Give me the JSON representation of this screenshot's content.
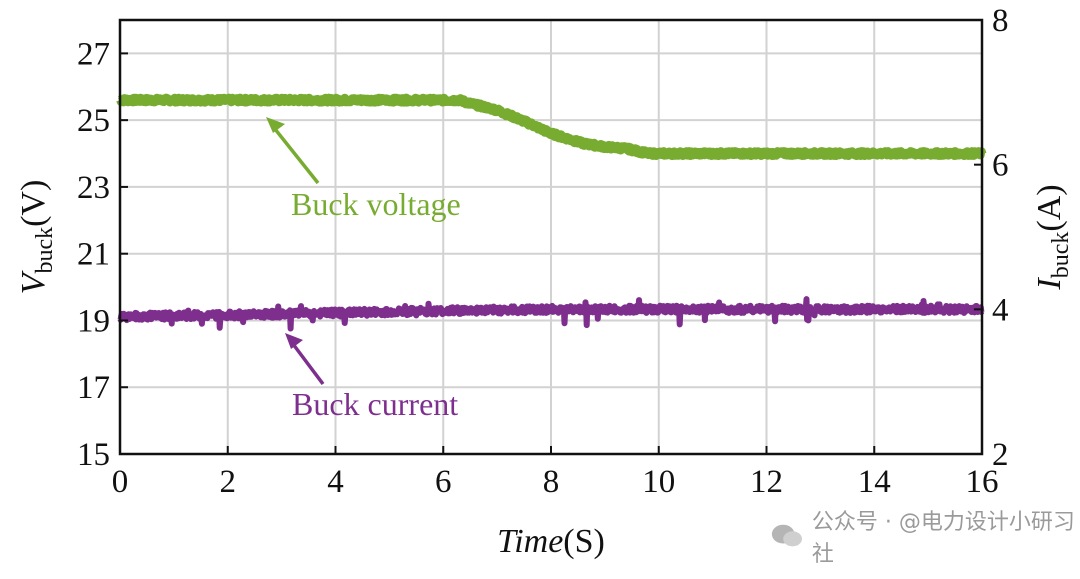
{
  "chart_data": {
    "type": "line",
    "xlabel": "Time",
    "xlabel_unit": "(S)",
    "ylabel_left": {
      "symbol": "V",
      "subscript": "buck",
      "unit": "(V)"
    },
    "ylabel_right": {
      "symbol": "I",
      "subscript": "buck",
      "unit": "(A)"
    },
    "xlim": [
      0,
      16
    ],
    "ylim_left": [
      15,
      28
    ],
    "ylim_right": [
      2,
      8
    ],
    "x_ticks": [
      "0",
      "2",
      "4",
      "6",
      "8",
      "10",
      "12",
      "14",
      "16"
    ],
    "y_left_ticks": [
      "15",
      "17",
      "19",
      "21",
      "23",
      "25",
      "27"
    ],
    "y_left_tick_values": [
      15,
      17,
      19,
      21,
      23,
      25,
      27
    ],
    "y_right_ticks": [
      "2",
      "4",
      "6",
      "8"
    ],
    "y_right_tick_values": [
      2,
      4,
      6,
      8
    ],
    "grid": true,
    "series": [
      {
        "name": "Buck voltage",
        "axis": "left",
        "color": "#77ac30",
        "x": [
          0,
          1,
          2,
          3,
          4,
          5,
          6,
          6.3,
          6.5,
          7.0,
          7.3,
          7.6,
          8.0,
          8.3,
          8.6,
          9.0,
          9.4,
          9.8,
          10.5,
          12,
          14,
          16
        ],
        "y": [
          25.6,
          25.6,
          25.6,
          25.6,
          25.6,
          25.6,
          25.6,
          25.6,
          25.5,
          25.3,
          25.1,
          24.9,
          24.6,
          24.45,
          24.3,
          24.2,
          24.15,
          24.0,
          24.0,
          24.0,
          24.0,
          24.0
        ]
      },
      {
        "name": "Buck current",
        "axis": "right",
        "color": "#7e2f8e",
        "x": [
          0,
          2,
          4,
          6,
          8,
          10,
          12,
          14,
          16
        ],
        "y": [
          3.9,
          3.92,
          3.95,
          3.98,
          4.0,
          4.0,
          4.0,
          4.0,
          4.0
        ]
      }
    ],
    "annotations": [
      {
        "text": "Buck voltage",
        "color": "#77ac30"
      },
      {
        "text": "Buck current",
        "color": "#7e2f8e"
      }
    ]
  },
  "watermark": {
    "text": "公众号 · @电力设计小研习社"
  }
}
